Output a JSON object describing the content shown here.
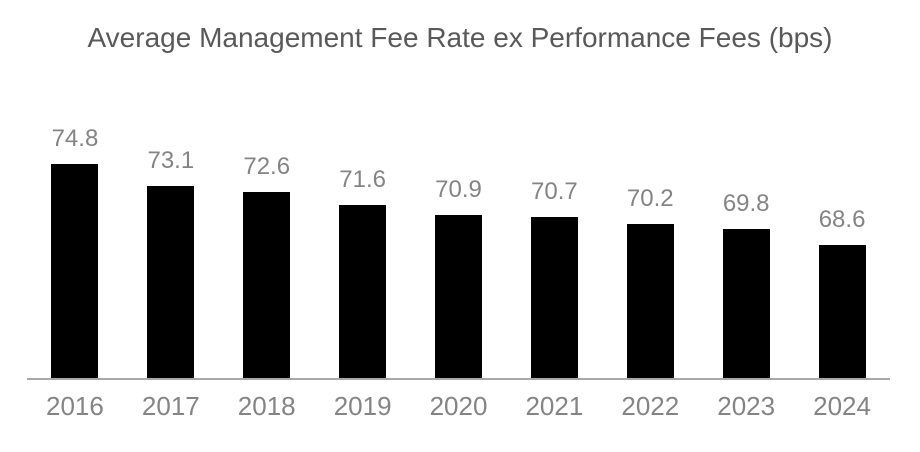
{
  "chart_data": {
    "type": "bar",
    "title": "Average Management Fee Rate ex Performance Fees (bps)",
    "categories": [
      "2016",
      "2017",
      "2018",
      "2019",
      "2020",
      "2021",
      "2022",
      "2023",
      "2024"
    ],
    "values": [
      74.8,
      73.1,
      72.6,
      71.6,
      70.9,
      70.7,
      70.2,
      69.8,
      68.6
    ],
    "data_labels": [
      "74.8",
      "73.1",
      "72.6",
      "71.6",
      "70.9",
      "70.7",
      "70.2",
      "69.8",
      "68.6"
    ],
    "xlabel": "",
    "ylabel": "",
    "ylim": [
      58.4,
      78.9
    ],
    "grid": false,
    "legend_position": "none",
    "colors": {
      "bar_fill": "#000000",
      "title_text": "#595959",
      "label_text": "#848484",
      "axis_line": "#a8a8a8",
      "background": "#ffffff"
    }
  }
}
